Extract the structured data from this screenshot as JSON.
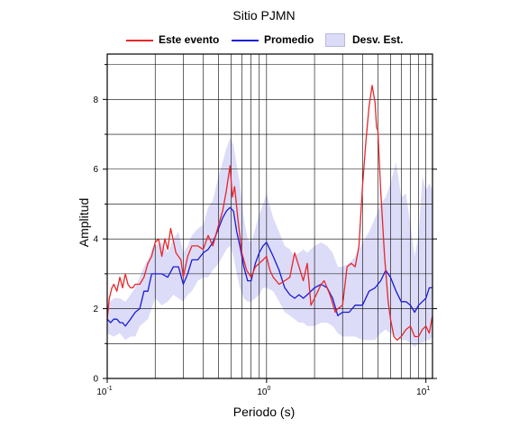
{
  "chart_data": {
    "type": "line",
    "title": "Sitio PJMN",
    "xlabel": "Periodo (s)",
    "ylabel": "Amplitud",
    "xscale": "log",
    "xlim": [
      0.1,
      11
    ],
    "ylim": [
      0,
      9.3
    ],
    "yticks": [
      "0",
      "2",
      "4",
      "6",
      "8"
    ],
    "xticks": [
      {
        "base": "10",
        "exp": "-1"
      },
      {
        "base": "10",
        "exp": "0"
      },
      {
        "base": "10",
        "exp": "1"
      }
    ],
    "grid": true,
    "legend_position": "top",
    "legend": {
      "event": "Este evento",
      "mean": "Promedio",
      "std": "Desv. Est."
    },
    "colors": {
      "event": "#e8262a",
      "mean": "#1a1ad6",
      "std_fill": "#dcdcf8"
    },
    "series": [
      {
        "name": "Este evento",
        "x": [
          0.1,
          0.103,
          0.107,
          0.11,
          0.115,
          0.12,
          0.125,
          0.13,
          0.135,
          0.14,
          0.145,
          0.15,
          0.16,
          0.17,
          0.18,
          0.19,
          0.2,
          0.21,
          0.22,
          0.23,
          0.24,
          0.25,
          0.27,
          0.29,
          0.3,
          0.32,
          0.34,
          0.37,
          0.4,
          0.43,
          0.46,
          0.5,
          0.53,
          0.56,
          0.59,
          0.61,
          0.63,
          0.66,
          0.7,
          0.75,
          0.8,
          0.85,
          0.9,
          0.95,
          1.0,
          1.05,
          1.1,
          1.2,
          1.3,
          1.4,
          1.5,
          1.6,
          1.7,
          1.8,
          1.9,
          2.0,
          2.1,
          2.2,
          2.3,
          2.5,
          2.7,
          2.8,
          3.0,
          3.2,
          3.4,
          3.6,
          3.8,
          4.0,
          4.2,
          4.4,
          4.6,
          4.8,
          4.9,
          5.0,
          5.2,
          5.5,
          5.8,
          6.0,
          6.3,
          6.6,
          7.0,
          7.5,
          8.0,
          8.5,
          9.0,
          9.5,
          10.0,
          10.5,
          11.0
        ],
        "values": [
          1.7,
          2.3,
          2.6,
          2.7,
          2.5,
          2.9,
          2.6,
          3.0,
          2.7,
          2.6,
          2.6,
          2.7,
          2.7,
          2.9,
          3.3,
          3.5,
          3.9,
          4.0,
          3.5,
          4.0,
          3.7,
          4.3,
          3.6,
          3.4,
          2.9,
          3.5,
          3.8,
          3.8,
          3.7,
          4.1,
          3.8,
          4.4,
          4.8,
          5.4,
          6.1,
          5.2,
          5.5,
          4.6,
          3.6,
          3.1,
          2.9,
          3.2,
          3.3,
          3.4,
          3.5,
          3.1,
          2.9,
          2.7,
          2.8,
          2.9,
          3.6,
          3.2,
          2.8,
          3.3,
          2.1,
          2.3,
          2.5,
          2.7,
          2.8,
          2.4,
          1.9,
          2.0,
          2.1,
          3.2,
          3.3,
          3.2,
          3.8,
          5.5,
          6.8,
          7.8,
          8.4,
          7.9,
          7.2,
          7.1,
          5.4,
          3.5,
          2.2,
          1.7,
          1.2,
          1.1,
          1.2,
          1.4,
          1.5,
          1.2,
          1.2,
          1.4,
          1.5,
          1.3,
          1.8
        ]
      },
      {
        "name": "Promedio",
        "x": [
          0.1,
          0.105,
          0.11,
          0.115,
          0.12,
          0.125,
          0.13,
          0.14,
          0.15,
          0.16,
          0.17,
          0.18,
          0.19,
          0.2,
          0.22,
          0.24,
          0.26,
          0.28,
          0.3,
          0.32,
          0.34,
          0.37,
          0.4,
          0.43,
          0.46,
          0.5,
          0.53,
          0.56,
          0.59,
          0.62,
          0.65,
          0.68,
          0.72,
          0.76,
          0.8,
          0.85,
          0.9,
          0.95,
          1.0,
          1.05,
          1.1,
          1.2,
          1.3,
          1.4,
          1.5,
          1.6,
          1.7,
          1.8,
          2.0,
          2.2,
          2.4,
          2.6,
          2.8,
          3.0,
          3.3,
          3.6,
          4.0,
          4.4,
          4.8,
          5.2,
          5.6,
          6.0,
          6.5,
          7.0,
          7.5,
          8.0,
          8.5,
          9.0,
          9.5,
          10.0,
          10.5,
          11.0
        ],
        "values": [
          1.7,
          1.6,
          1.7,
          1.7,
          1.6,
          1.6,
          1.5,
          1.7,
          1.9,
          2.0,
          2.5,
          2.5,
          3.0,
          3.0,
          3.0,
          2.9,
          3.2,
          3.2,
          2.7,
          3.0,
          3.4,
          3.4,
          3.6,
          3.7,
          3.9,
          4.3,
          4.6,
          4.8,
          4.9,
          4.8,
          4.2,
          3.8,
          3.2,
          2.8,
          2.8,
          3.3,
          3.6,
          3.8,
          3.9,
          3.7,
          3.5,
          3.1,
          2.6,
          2.4,
          2.3,
          2.4,
          2.3,
          2.4,
          2.6,
          2.7,
          2.6,
          2.3,
          1.8,
          1.9,
          1.9,
          2.1,
          2.1,
          2.5,
          2.6,
          2.8,
          3.1,
          2.9,
          2.5,
          2.2,
          2.2,
          2.1,
          1.9,
          2.1,
          2.2,
          2.3,
          2.6,
          2.6
        ]
      },
      {
        "name": "Desv. Est.",
        "x": [
          0.1,
          0.11,
          0.12,
          0.13,
          0.14,
          0.15,
          0.16,
          0.17,
          0.18,
          0.19,
          0.2,
          0.22,
          0.24,
          0.26,
          0.28,
          0.3,
          0.32,
          0.34,
          0.37,
          0.4,
          0.43,
          0.46,
          0.5,
          0.53,
          0.56,
          0.59,
          0.62,
          0.65,
          0.68,
          0.72,
          0.76,
          0.8,
          0.85,
          0.9,
          0.95,
          1.0,
          1.1,
          1.2,
          1.3,
          1.4,
          1.5,
          1.6,
          1.7,
          1.8,
          2.0,
          2.2,
          2.4,
          2.6,
          2.8,
          3.0,
          3.3,
          3.6,
          4.0,
          4.4,
          4.8,
          5.2,
          5.6,
          6.0,
          6.5,
          7.0,
          7.5,
          8.0,
          8.5,
          9.0,
          9.5,
          10.0,
          10.5,
          11.0
        ],
        "upper": [
          2.1,
          2.3,
          2.3,
          2.2,
          2.4,
          2.6,
          2.9,
          3.2,
          3.4,
          3.7,
          3.8,
          3.9,
          3.6,
          4.0,
          4.2,
          3.6,
          3.8,
          4.1,
          4.3,
          4.4,
          4.9,
          5.1,
          5.8,
          6.2,
          6.6,
          6.9,
          6.7,
          6.1,
          5.6,
          4.6,
          4.0,
          3.9,
          4.3,
          4.7,
          5.0,
          5.3,
          4.6,
          4.2,
          3.8,
          3.7,
          3.5,
          3.6,
          3.7,
          3.6,
          3.8,
          3.9,
          3.8,
          3.6,
          3.2,
          3.2,
          3.3,
          3.5,
          3.9,
          4.2,
          4.6,
          5.0,
          5.2,
          5.6,
          6.2,
          5.2,
          5.3,
          4.4,
          3.5,
          4.1,
          5.8,
          5.4,
          5.6,
          5.4
        ]
      },
      {
        "name": "",
        "x": [
          0.1,
          0.11,
          0.12,
          0.13,
          0.14,
          0.15,
          0.16,
          0.17,
          0.18,
          0.19,
          0.2,
          0.22,
          0.24,
          0.26,
          0.28,
          0.3,
          0.32,
          0.34,
          0.37,
          0.4,
          0.43,
          0.46,
          0.5,
          0.53,
          0.56,
          0.59,
          0.62,
          0.65,
          0.68,
          0.72,
          0.76,
          0.8,
          0.85,
          0.9,
          0.95,
          1.0,
          1.1,
          1.2,
          1.3,
          1.4,
          1.5,
          1.6,
          1.7,
          1.8,
          2.0,
          2.2,
          2.4,
          2.6,
          2.8,
          3.0,
          3.3,
          3.6,
          4.0,
          4.4,
          4.8,
          5.2,
          5.6,
          6.0,
          6.5,
          7.0,
          7.5,
          8.0,
          8.5,
          9.0,
          9.5,
          10.0,
          10.5,
          11.0
        ],
        "lower": [
          1.3,
          1.2,
          1.3,
          1.1,
          1.2,
          1.2,
          1.5,
          1.6,
          1.7,
          2.0,
          2.3,
          2.1,
          2.2,
          2.4,
          2.3,
          2.2,
          2.4,
          2.5,
          2.8,
          2.9,
          2.9,
          3.1,
          3.3,
          3.5,
          3.7,
          3.8,
          3.5,
          3.0,
          2.6,
          2.3,
          2.2,
          2.2,
          2.3,
          2.4,
          2.6,
          2.6,
          2.5,
          2.2,
          1.9,
          1.8,
          1.7,
          1.6,
          1.6,
          1.5,
          1.5,
          1.6,
          1.6,
          1.5,
          1.3,
          1.2,
          1.2,
          1.2,
          1.1,
          1.1,
          1.1,
          1.3,
          1.4,
          1.3,
          1.2,
          1.1,
          1.1,
          1.0,
          0.9,
          1.0,
          1.0,
          1.1,
          1.1,
          1.2
        ]
      }
    ]
  }
}
